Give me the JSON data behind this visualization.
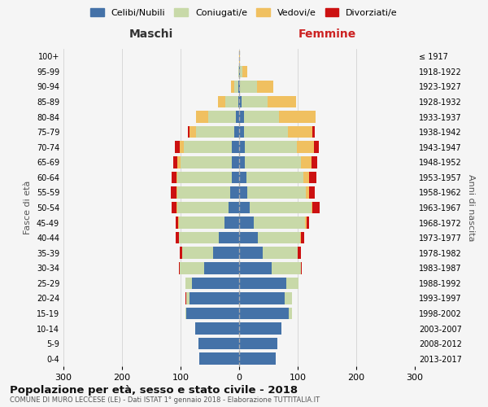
{
  "age_groups": [
    "0-4",
    "5-9",
    "10-14",
    "15-19",
    "20-24",
    "25-29",
    "30-34",
    "35-39",
    "40-44",
    "45-49",
    "50-54",
    "55-59",
    "60-64",
    "65-69",
    "70-74",
    "75-79",
    "80-84",
    "85-89",
    "90-94",
    "95-99",
    "100+"
  ],
  "birth_years": [
    "2013-2017",
    "2008-2012",
    "2003-2007",
    "1998-2002",
    "1993-1997",
    "1988-1992",
    "1983-1987",
    "1978-1982",
    "1973-1977",
    "1968-1972",
    "1963-1967",
    "1958-1962",
    "1953-1957",
    "1948-1952",
    "1943-1947",
    "1938-1942",
    "1933-1937",
    "1928-1932",
    "1923-1927",
    "1918-1922",
    "≤ 1917"
  ],
  "colors": {
    "celibi": "#4472a8",
    "coniugati": "#c8d9a8",
    "vedovi": "#f0c060",
    "divorziati": "#cc1111"
  },
  "maschi": {
    "celibi": [
      68,
      70,
      75,
      90,
      85,
      80,
      60,
      45,
      35,
      25,
      18,
      15,
      13,
      12,
      12,
      8,
      5,
      2,
      1,
      0,
      0
    ],
    "coniugati": [
      0,
      0,
      0,
      2,
      5,
      12,
      42,
      52,
      68,
      78,
      88,
      90,
      92,
      88,
      82,
      65,
      48,
      22,
      8,
      1,
      0
    ],
    "vedovi": [
      0,
      0,
      0,
      0,
      0,
      0,
      0,
      0,
      0,
      1,
      1,
      2,
      2,
      5,
      8,
      12,
      20,
      12,
      5,
      0,
      0
    ],
    "divorziati": [
      0,
      0,
      0,
      0,
      2,
      0,
      1,
      4,
      6,
      5,
      8,
      9,
      8,
      8,
      8,
      3,
      0,
      0,
      0,
      0,
      0
    ]
  },
  "femmine": {
    "celibi": [
      62,
      65,
      72,
      85,
      78,
      80,
      55,
      40,
      32,
      25,
      18,
      14,
      12,
      10,
      10,
      8,
      8,
      4,
      2,
      1,
      0
    ],
    "coniugati": [
      0,
      0,
      0,
      5,
      12,
      22,
      50,
      60,
      72,
      88,
      105,
      100,
      98,
      95,
      88,
      75,
      60,
      45,
      28,
      5,
      0
    ],
    "vedovi": [
      0,
      0,
      0,
      0,
      0,
      0,
      0,
      0,
      1,
      2,
      2,
      5,
      10,
      18,
      30,
      42,
      62,
      48,
      28,
      8,
      2
    ],
    "divorziati": [
      0,
      0,
      0,
      0,
      0,
      0,
      2,
      5,
      6,
      5,
      12,
      10,
      12,
      10,
      8,
      4,
      0,
      0,
      0,
      0,
      0
    ]
  },
  "title": "Popolazione per età, sesso e stato civile - 2018",
  "subtitle": "COMUNE DI MURO LECCESE (LE) - Dati ISTAT 1° gennaio 2018 - Elaborazione TUTTITALIA.IT",
  "xlabel_left": "Maschi",
  "xlabel_right": "Femmine",
  "ylabel_left": "Fasce di età",
  "ylabel_right": "Anni di nascita",
  "xlim": 300,
  "bg_color": "#f5f5f5",
  "grid_color": "#cccccc",
  "legend_labels": [
    "Celibi/Nubili",
    "Coniugati/e",
    "Vedovi/e",
    "Divorziati/e"
  ]
}
